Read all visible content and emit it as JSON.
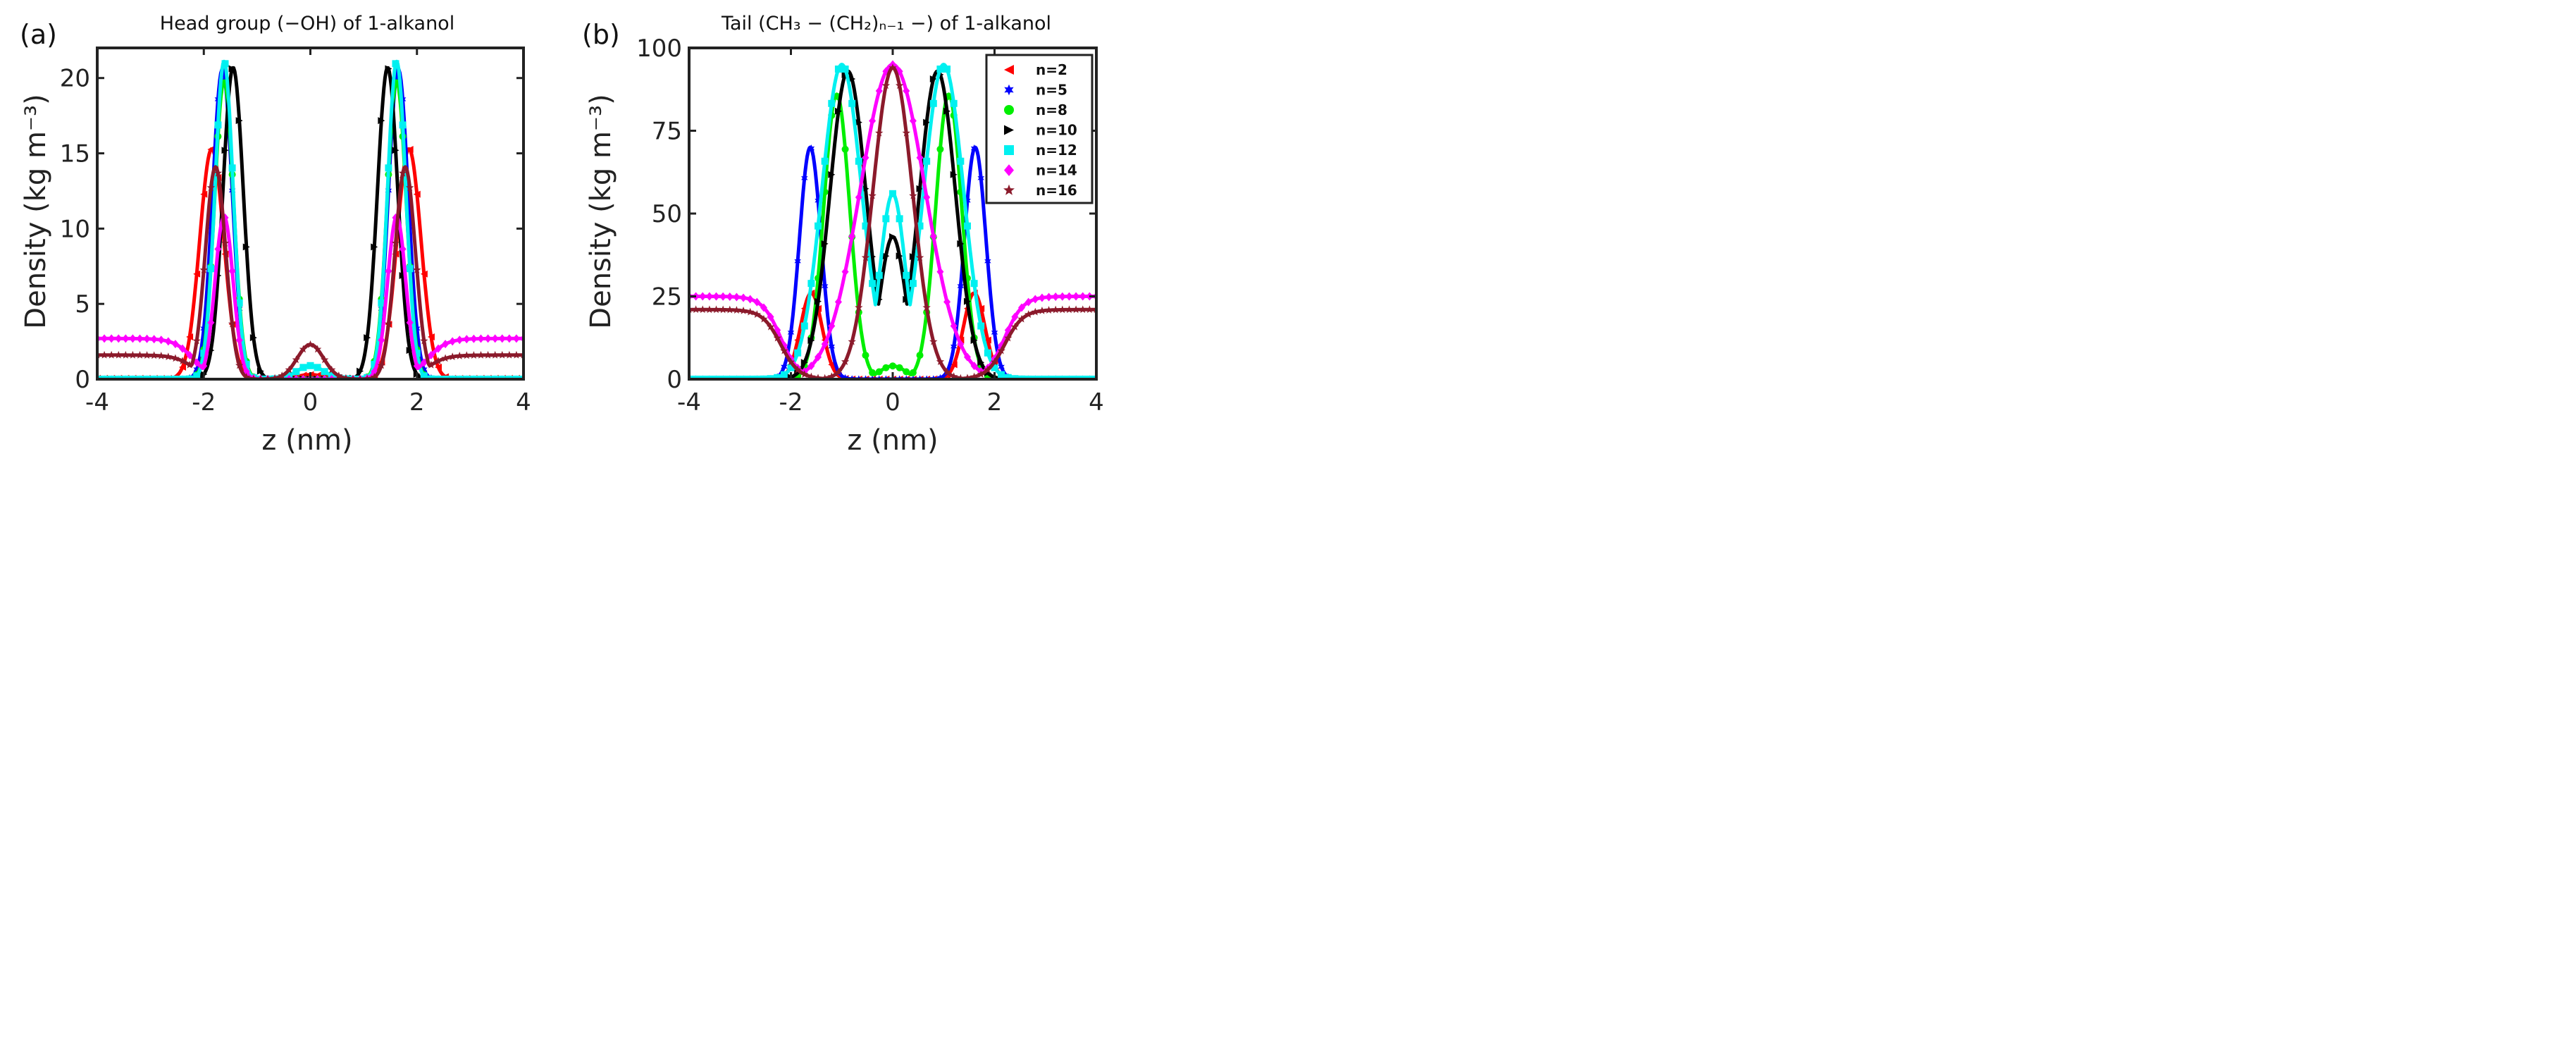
{
  "chart_data": [
    {
      "type": "line",
      "panel_label": "(a)",
      "title": "Head group (−OH) of 1-alkanol",
      "xlabel": "z (nm)",
      "ylabel": "Density (kg m⁻³)",
      "xlim": [
        -4,
        4
      ],
      "ylim": [
        0,
        22
      ],
      "xticks": [
        -4,
        -2,
        0,
        2,
        4
      ],
      "yticks": [
        0,
        5,
        10,
        15,
        20
      ],
      "grid": false,
      "series": [
        {
          "name": "n=2",
          "color": "#ff0000",
          "marker": "triangle-left",
          "peaks": [
            {
              "z": 1.85,
              "h": 15.3,
              "w": 0.32
            }
          ],
          "center": 0.3,
          "tail": 0.05
        },
        {
          "name": "n=5",
          "color": "#0000ff",
          "marker": "star6",
          "peaks": [
            {
              "z": 1.65,
              "h": 20.6,
              "w": 0.26
            }
          ],
          "center": 0.05,
          "tail": 0.0
        },
        {
          "name": "n=8",
          "color": "#00ee00",
          "marker": "circle",
          "peaks": [
            {
              "z": 1.62,
              "h": 19.8,
              "w": 0.25
            }
          ],
          "center": 0.0,
          "tail": 0.0
        },
        {
          "name": "n=10",
          "color": "#000000",
          "marker": "triangle-right",
          "peaks": [
            {
              "z": 1.45,
              "h": 20.7,
              "w": 0.27
            }
          ],
          "center": 0.0,
          "tail": 0.0
        },
        {
          "name": "n=12",
          "color": "#00f0f0",
          "marker": "square",
          "peaks": [
            {
              "z": 1.62,
              "h": 21.1,
              "w": 0.24
            }
          ],
          "center": 0.9,
          "tail": 0.0
        },
        {
          "name": "n=14",
          "color": "#ff00ff",
          "marker": "diamond",
          "peaks": [
            {
              "z": 1.62,
              "h": 10.8,
              "w": 0.24
            }
          ],
          "center": 0.0,
          "tail": 2.7
        },
        {
          "name": "n=16",
          "color": "#8b1a2b",
          "marker": "star5",
          "peaks": [
            {
              "z": 1.78,
              "h": 14.1,
              "w": 0.27
            }
          ],
          "center": 2.3,
          "tail": 1.6
        }
      ]
    },
    {
      "type": "line",
      "panel_label": "(b)",
      "title": "Tail (CH₃ − (CH₂)ₙ₋₁ −) of 1-alkanol",
      "xlabel": "z (nm)",
      "ylabel": "Density (kg m⁻³)",
      "xlim": [
        -4,
        4
      ],
      "ylim": [
        0,
        100
      ],
      "xticks": [
        -4,
        -2,
        0,
        2,
        4
      ],
      "yticks": [
        0,
        25,
        50,
        75,
        100
      ],
      "grid": false,
      "legend_position": "top-right",
      "series": [
        {
          "name": "n=2",
          "color": "#ff0000",
          "marker": "triangle-left",
          "peaks": [
            {
              "z": 1.6,
              "h": 26,
              "w": 0.3
            }
          ],
          "center": 0,
          "tail": 0
        },
        {
          "name": "n=5",
          "color": "#0000ff",
          "marker": "star6",
          "peaks": [
            {
              "z": 1.62,
              "h": 70,
              "w": 0.3
            }
          ],
          "center": 0,
          "tail": 0
        },
        {
          "name": "n=8",
          "color": "#00ee00",
          "marker": "circle",
          "peaks": [
            {
              "z": 1.1,
              "h": 86,
              "w": 0.36
            }
          ],
          "center": 4,
          "tail": 0
        },
        {
          "name": "n=10",
          "color": "#000000",
          "marker": "triangle-right",
          "peaks": [
            {
              "z": 0.88,
              "h": 93,
              "w": 0.5
            }
          ],
          "center": 43,
          "tail": 0
        },
        {
          "name": "n=12",
          "color": "#00f0f0",
          "marker": "square",
          "peaks": [
            {
              "z": 1.0,
              "h": 95,
              "w": 0.55
            }
          ],
          "center": 56,
          "tail": 0
        },
        {
          "name": "n=14",
          "color": "#ff00ff",
          "marker": "diamond",
          "peaks": [
            {
              "z": 0.0,
              "h": 95,
              "w": 0.9
            }
          ],
          "center": 95,
          "tail": 25
        },
        {
          "name": "n=16",
          "color": "#8b1a2b",
          "marker": "star5",
          "peaks": [
            {
              "z": 0.0,
              "h": 94,
              "w": 0.55
            }
          ],
          "center": 94,
          "tail": 21
        }
      ]
    }
  ]
}
